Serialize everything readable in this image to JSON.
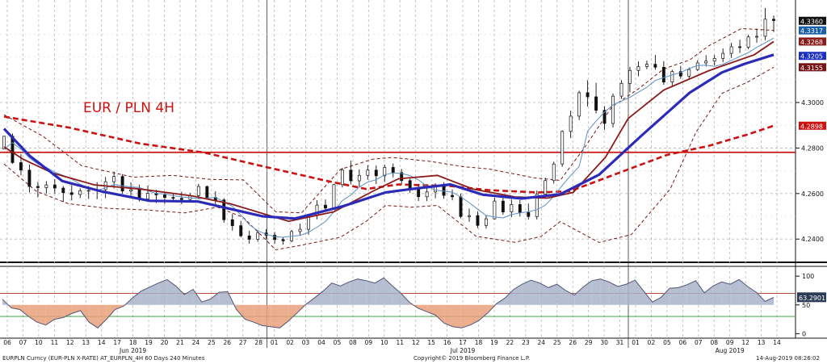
{
  "chart_data": {
    "type": "candlestick",
    "title": "EUR / PLN 4H",
    "colors": {
      "title": "#cc1111",
      "bull_candle": "#ffffff",
      "bear_candle": "#111111",
      "ma_fast": "#2b2bb8",
      "ma_mid": "#8b1a1a",
      "ma_slow": "#cc1111",
      "ma_short": "#5a8fc8",
      "bollinger": "#7a1515",
      "resistance": "#cc1111",
      "oscillator_line": "#555577",
      "oscillator_fill_high": "#a9b4c9",
      "oscillator_fill_low": "#e8a07a"
    },
    "y_axis": {
      "ylim": [
        4.2305,
        4.3415
      ],
      "ticks": [
        "4.2400",
        "4.2600",
        "4.2800",
        "4.3000"
      ]
    },
    "resistance_level": 4.2781,
    "last_value_labels": [
      {
        "value": "4.3360",
        "y": 4.3359,
        "bg": "#111111"
      },
      {
        "value": "4.3317",
        "y": 4.3317,
        "bg": "#1a5fa8"
      },
      {
        "value": "4.3268",
        "y": 4.3268,
        "bg": "#8b1a1a"
      },
      {
        "value": "4.3205",
        "y": 4.3205,
        "bg": "#1a2ec0"
      },
      {
        "value": "4.3155",
        "y": 4.3155,
        "bg": "#7a1515"
      },
      {
        "value": "4.2898",
        "y": 4.2898,
        "bg": "#cc1111"
      }
    ],
    "x_day_labels": [
      "06",
      "07",
      "10",
      "11",
      "12",
      "13",
      "14",
      "17",
      "18",
      "19",
      "20",
      "21",
      "24",
      "25",
      "26",
      "27",
      "28",
      "01",
      "02",
      "03",
      "04",
      "05",
      "08",
      "09",
      "10",
      "11",
      "12",
      "15",
      "16",
      "17",
      "18",
      "19",
      "22",
      "23",
      "24",
      "25",
      "26",
      "29",
      "30",
      "31",
      "01",
      "02",
      "05",
      "06",
      "07",
      "08",
      "09",
      "12",
      "13",
      "14"
    ],
    "month_labels": [
      {
        "label": "Jun 2019",
        "at_day_index": 8
      },
      {
        "label": "Jul 2019",
        "at_day_index": 29
      },
      {
        "label": "Aug 2019",
        "at_day_index": 46
      }
    ],
    "month_start_indices": [
      17,
      40
    ],
    "candles": [
      [
        4.2796,
        4.2852,
        4.2796,
        4.2852
      ],
      [
        4.2852,
        4.2864,
        4.2731,
        4.2736
      ],
      [
        4.2736,
        4.2774,
        4.268,
        4.2703
      ],
      [
        4.2703,
        4.2728,
        4.2605,
        4.2631
      ],
      [
        4.2631,
        4.2651,
        4.2583,
        4.2626
      ],
      [
        4.2626,
        4.2655,
        4.26,
        4.2638
      ],
      [
        4.2638,
        4.2663,
        4.26,
        4.2624
      ],
      [
        4.2624,
        4.2633,
        4.2563,
        4.2604
      ],
      [
        4.2604,
        4.2637,
        4.257,
        4.2596
      ],
      [
        4.2596,
        4.2623,
        4.258,
        4.2612
      ],
      [
        4.2612,
        4.2633,
        4.2576,
        4.2614
      ],
      [
        4.2614,
        4.265,
        4.2575,
        4.2617
      ],
      [
        4.2617,
        4.2673,
        4.258,
        4.2652
      ],
      [
        4.2652,
        4.2697,
        4.2623,
        4.2675
      ],
      [
        4.2675,
        4.2685,
        4.26,
        4.2611
      ],
      [
        4.2611,
        4.2649,
        4.2589,
        4.2617
      ],
      [
        4.2617,
        4.2639,
        4.2565,
        4.2576
      ],
      [
        4.2576,
        4.2635,
        4.2563,
        4.2601
      ],
      [
        4.2601,
        4.2616,
        4.2559,
        4.2594
      ],
      [
        4.2594,
        4.2606,
        4.2555,
        4.2583
      ],
      [
        4.2583,
        4.2602,
        4.2569,
        4.2579
      ],
      [
        4.2579,
        4.2608,
        4.2553,
        4.2574
      ],
      [
        4.2574,
        4.2602,
        4.2561,
        4.2591
      ],
      [
        4.2591,
        4.2643,
        4.2578,
        4.2631
      ],
      [
        4.2631,
        4.2635,
        4.2575,
        4.2583
      ],
      [
        4.2583,
        4.261,
        4.2551,
        4.2572
      ],
      [
        4.2572,
        4.258,
        4.2472,
        4.2485
      ],
      [
        4.2485,
        4.2511,
        4.2437,
        4.2459
      ],
      [
        4.2459,
        4.248,
        4.2408,
        4.2414
      ],
      [
        4.2414,
        4.2437,
        4.238,
        4.2399
      ],
      [
        4.2399,
        4.2438,
        4.2388,
        4.2427
      ],
      [
        4.2427,
        4.2444,
        4.2398,
        4.2417
      ],
      [
        4.2417,
        4.2431,
        4.238,
        4.2398
      ],
      [
        4.2398,
        4.241,
        4.2376,
        4.2392
      ],
      [
        4.2392,
        4.244,
        4.2386,
        4.2433
      ],
      [
        4.2433,
        4.2468,
        4.2416,
        4.2443
      ],
      [
        4.2443,
        4.251,
        4.2419,
        4.2503
      ],
      [
        4.2503,
        4.2571,
        4.2487,
        4.2549
      ],
      [
        4.2549,
        4.2574,
        4.2521,
        4.2536
      ],
      [
        4.2536,
        4.2642,
        4.2535,
        4.2639
      ],
      [
        4.2639,
        4.2713,
        4.2627,
        4.2703
      ],
      [
        4.2703,
        4.2744,
        4.264,
        4.2656
      ],
      [
        4.2656,
        4.2706,
        4.2628,
        4.268
      ],
      [
        4.268,
        4.2725,
        4.2661,
        4.2703
      ],
      [
        4.2703,
        4.2724,
        4.2642,
        4.2678
      ],
      [
        4.2678,
        4.2727,
        4.2651,
        4.2715
      ],
      [
        4.2715,
        4.2732,
        4.2671,
        4.2692
      ],
      [
        4.2692,
        4.2708,
        4.2641,
        4.2657
      ],
      [
        4.2657,
        4.2671,
        4.2603,
        4.2618
      ],
      [
        4.2618,
        4.2638,
        4.2567,
        4.2586
      ],
      [
        4.2586,
        4.2628,
        4.2567,
        4.2607
      ],
      [
        4.2607,
        4.2645,
        4.2579,
        4.263
      ],
      [
        4.263,
        4.265,
        4.2577,
        4.2592
      ],
      [
        4.2592,
        4.2618,
        4.257,
        4.2586
      ],
      [
        4.2586,
        4.26,
        4.2491,
        4.2499
      ],
      [
        4.2499,
        4.2534,
        4.2476,
        4.2503
      ],
      [
        4.2503,
        4.2522,
        4.2448,
        4.246
      ],
      [
        4.246,
        4.2506,
        4.2446,
        4.2489
      ],
      [
        4.2489,
        4.2582,
        4.2486,
        4.2567
      ],
      [
        4.2567,
        4.2587,
        4.2507,
        4.2519
      ],
      [
        4.2519,
        4.2574,
        4.2496,
        4.2552
      ],
      [
        4.2552,
        4.2571,
        4.2499,
        4.2517
      ],
      [
        4.2517,
        4.2556,
        4.2486,
        4.2499
      ],
      [
        4.2499,
        4.2613,
        4.2486,
        4.2597
      ],
      [
        4.2597,
        4.2669,
        4.258,
        4.2657
      ],
      [
        4.2657,
        4.274,
        4.2644,
        4.273
      ],
      [
        4.273,
        4.2878,
        4.2718,
        4.2873
      ],
      [
        4.2873,
        4.2964,
        4.2844,
        4.294
      ],
      [
        4.294,
        4.3052,
        4.2923,
        4.3043
      ],
      [
        4.3043,
        4.3098,
        4.2982,
        4.3025
      ],
      [
        4.3025,
        4.3087,
        4.2952,
        4.2966
      ],
      [
        4.2966,
        4.2984,
        4.288,
        4.2908
      ],
      [
        4.2908,
        4.304,
        4.289,
        4.3028
      ],
      [
        4.3028,
        4.3098,
        4.3016,
        4.3084
      ],
      [
        4.3084,
        4.3156,
        4.3045,
        4.3141
      ],
      [
        4.3141,
        4.3181,
        4.3115,
        4.3158
      ],
      [
        4.3158,
        4.3184,
        4.3146,
        4.3168
      ],
      [
        4.3168,
        4.3209,
        4.3144,
        4.3155
      ],
      [
        4.3155,
        4.3182,
        4.3078,
        4.309
      ],
      [
        4.309,
        4.3144,
        4.3067,
        4.3136
      ],
      [
        4.3136,
        4.3161,
        4.3104,
        4.3116
      ],
      [
        4.3116,
        4.3154,
        4.3101,
        4.3145
      ],
      [
        4.3145,
        4.3186,
        4.3138,
        4.3174
      ],
      [
        4.3174,
        4.3208,
        4.3158,
        4.3182
      ],
      [
        4.3182,
        4.3209,
        4.3163,
        4.3194
      ],
      [
        4.3194,
        4.3238,
        4.3177,
        4.3216
      ],
      [
        4.3216,
        4.3263,
        4.3196,
        4.3245
      ],
      [
        4.3245,
        4.3276,
        4.3218,
        4.3243
      ],
      [
        4.3243,
        4.3298,
        4.3234,
        4.3288
      ],
      [
        4.3288,
        4.3325,
        4.3263,
        4.3291
      ],
      [
        4.3291,
        4.3415,
        4.3274,
        4.3366
      ],
      [
        4.3366,
        4.3382,
        4.331,
        4.336
      ]
    ],
    "sma_short": [
      4.2796,
      4.2824,
      4.2795,
      4.2756,
      4.273,
      4.2715,
      4.2694,
      4.268,
      4.2664,
      4.2641,
      4.2622,
      4.2614,
      4.2625,
      4.264,
      4.2634,
      4.2629,
      4.2627,
      4.2612,
      4.26,
      4.2598,
      4.2591,
      4.2585,
      4.2582,
      4.2577,
      4.258,
      4.2583,
      4.2563,
      4.2544,
      4.2506,
      4.2463,
      4.2437,
      4.2421,
      4.2411,
      4.2408,
      4.2413,
      4.2416,
      4.243,
      4.2452,
      4.2477,
      4.252,
      4.2569,
      4.2594,
      4.2628,
      4.265,
      4.2661,
      4.2682,
      4.2691,
      4.2688,
      4.2679,
      4.266,
      4.2632,
      4.2615,
      4.2611,
      4.2606,
      4.2585,
      4.256,
      4.2531,
      4.2504,
      4.2497,
      4.2493,
      4.2507,
      4.2515,
      4.252,
      4.2529,
      4.2549,
      4.2588,
      4.2636,
      4.268,
      4.2719,
      4.2874,
      4.2919,
      4.2958,
      4.2989,
      4.3006,
      4.3023,
      4.3045,
      4.3067,
      4.3097,
      4.311,
      4.3121,
      4.3132,
      4.3149,
      4.3162,
      4.3164,
      4.3159,
      4.3168,
      4.3185,
      4.3203,
      4.3219,
      4.3243,
      4.3263,
      4.3283
    ],
    "ma_fast_pts": [
      [
        0,
        4.2885
      ],
      [
        8,
        4.2765
      ],
      [
        18,
        4.2655
      ],
      [
        30,
        4.261
      ],
      [
        45,
        4.2568
      ],
      [
        60,
        4.2565
      ],
      [
        80,
        4.25
      ],
      [
        90,
        4.249
      ],
      [
        105,
        4.2545
      ],
      [
        118,
        4.2605
      ],
      [
        125,
        4.2618
      ],
      [
        138,
        4.264
      ],
      [
        148,
        4.2595
      ],
      [
        160,
        4.2578
      ],
      [
        172,
        4.2597
      ],
      [
        184,
        4.2683
      ],
      [
        197,
        4.2853
      ],
      [
        212,
        4.3043
      ],
      [
        222,
        4.3132
      ],
      [
        229,
        4.317
      ],
      [
        238,
        4.321
      ]
    ],
    "ma_mid_pts": [
      [
        0,
        4.2805
      ],
      [
        6,
        4.275
      ],
      [
        15,
        4.269
      ],
      [
        28,
        4.2638
      ],
      [
        42,
        4.262
      ],
      [
        58,
        4.259
      ],
      [
        70,
        4.2555
      ],
      [
        88,
        4.2478
      ],
      [
        102,
        4.252
      ],
      [
        114,
        4.261
      ],
      [
        122,
        4.2665
      ],
      [
        134,
        4.268
      ],
      [
        145,
        4.262
      ],
      [
        158,
        4.2585
      ],
      [
        168,
        4.258
      ],
      [
        176,
        4.2605
      ],
      [
        186,
        4.276
      ],
      [
        193,
        4.293
      ],
      [
        204,
        4.3055
      ],
      [
        218,
        4.314
      ],
      [
        232,
        4.321
      ],
      [
        238,
        4.3268
      ]
    ],
    "ma_slow_pts": [
      [
        0,
        4.2938
      ],
      [
        20,
        4.289
      ],
      [
        42,
        4.282
      ],
      [
        62,
        4.278
      ],
      [
        80,
        4.272
      ],
      [
        100,
        4.2655
      ],
      [
        112,
        4.262
      ],
      [
        122,
        4.264
      ],
      [
        138,
        4.2633
      ],
      [
        150,
        4.2615
      ],
      [
        165,
        4.2605
      ],
      [
        175,
        4.261
      ],
      [
        190,
        4.269
      ],
      [
        205,
        4.277
      ],
      [
        218,
        4.281
      ],
      [
        230,
        4.286
      ],
      [
        238,
        4.2898
      ]
    ],
    "boll_upper_pts": [
      [
        0,
        4.2946
      ],
      [
        12,
        4.2852
      ],
      [
        24,
        4.2722
      ],
      [
        40,
        4.2672
      ],
      [
        52,
        4.268
      ],
      [
        64,
        4.2662
      ],
      [
        74,
        4.266
      ],
      [
        84,
        4.252
      ],
      [
        92,
        4.2515
      ],
      [
        104,
        4.2706
      ],
      [
        114,
        4.2751
      ],
      [
        120,
        4.2759
      ],
      [
        132,
        4.2741
      ],
      [
        142,
        4.2718
      ],
      [
        150,
        4.2708
      ],
      [
        164,
        4.2669
      ],
      [
        172,
        4.2658
      ],
      [
        180,
        4.2812
      ],
      [
        188,
        4.2982
      ],
      [
        196,
        4.3058
      ],
      [
        204,
        4.3148
      ],
      [
        212,
        4.3187
      ],
      [
        218,
        4.325
      ],
      [
        228,
        4.3325
      ],
      [
        238,
        4.3317
      ]
    ],
    "boll_lower_pts": [
      [
        0,
        4.273
      ],
      [
        10,
        4.261
      ],
      [
        20,
        4.2555
      ],
      [
        32,
        4.2535
      ],
      [
        44,
        4.2528
      ],
      [
        56,
        4.2515
      ],
      [
        66,
        4.254
      ],
      [
        74,
        4.2495
      ],
      [
        84,
        4.2353
      ],
      [
        92,
        4.2373
      ],
      [
        104,
        4.2408
      ],
      [
        112,
        4.2478
      ],
      [
        118,
        4.2548
      ],
      [
        126,
        4.254
      ],
      [
        134,
        4.2548
      ],
      [
        146,
        4.2412
      ],
      [
        158,
        4.2386
      ],
      [
        166,
        4.2411
      ],
      [
        172,
        4.2477
      ],
      [
        184,
        4.2385
      ],
      [
        194,
        4.242
      ],
      [
        206,
        4.262
      ],
      [
        214,
        4.287
      ],
      [
        222,
        4.304
      ],
      [
        230,
        4.309
      ],
      [
        238,
        4.3155
      ]
    ],
    "oscillator": {
      "ticks": [
        "100",
        "50",
        "0"
      ],
      "ylim": [
        -5,
        110
      ],
      "upper_line": 70,
      "lower_line": 30,
      "last_value": "63.2901",
      "values": [
        60,
        45,
        42,
        30,
        20,
        15,
        25,
        28,
        35,
        40,
        20,
        10,
        25,
        42,
        48,
        62,
        74,
        81,
        88,
        94,
        83,
        68,
        77,
        55,
        60,
        72,
        73,
        42,
        25,
        20,
        14,
        12,
        10,
        22,
        36,
        51,
        62,
        74,
        88,
        83,
        90,
        95,
        92,
        88,
        97,
        83,
        70,
        54,
        44,
        38,
        32,
        18,
        12,
        10,
        15,
        23,
        36,
        52,
        62,
        77,
        86,
        93,
        88,
        80,
        86,
        75,
        67,
        81,
        92,
        95,
        90,
        82,
        86,
        93,
        74,
        55,
        63,
        79,
        80,
        85,
        92,
        71,
        83,
        90,
        86,
        94,
        82,
        72,
        56,
        63
      ]
    }
  },
  "footer": {
    "left": "EURPLN Curncy (EUR-PLN X-RATE) AT_EURPLN_4H 60 Days 240 Minutes",
    "center": "Copyright© 2019 Bloomberg Finance L.P.",
    "right": "14-Aug-2019 08:26:02"
  }
}
